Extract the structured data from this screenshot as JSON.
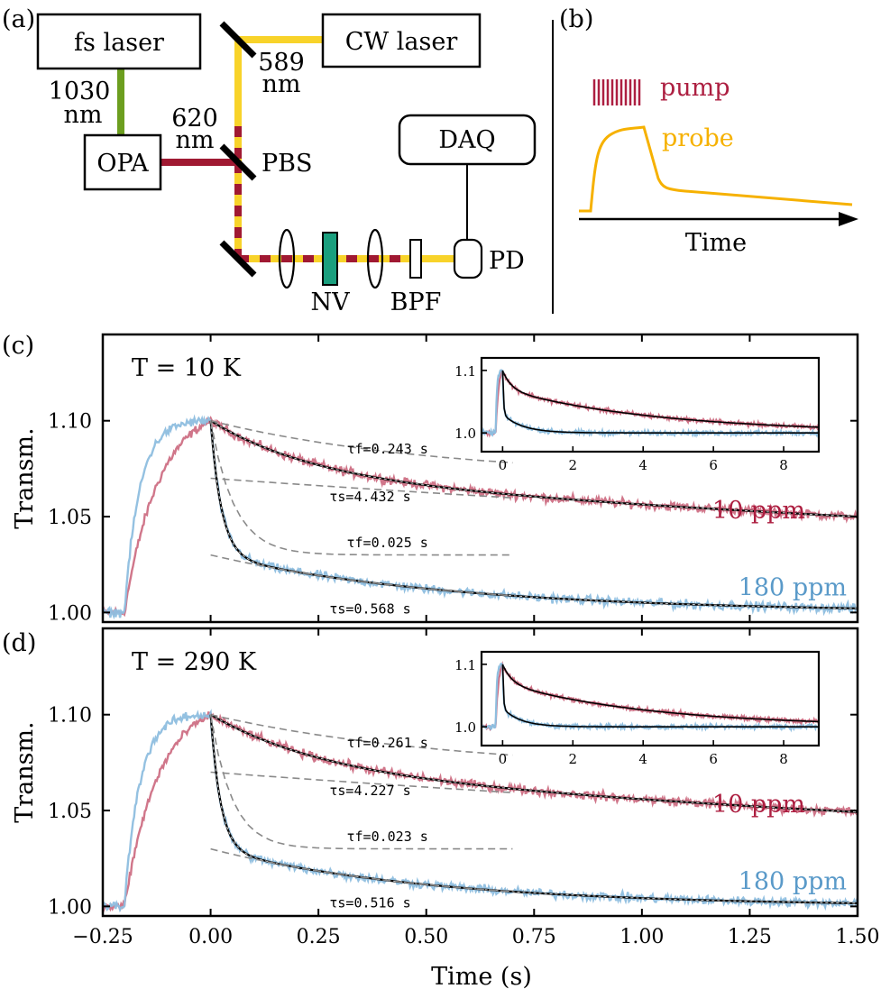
{
  "panel_labels": {
    "a": "(a)",
    "b": "(b)",
    "c": "(c)",
    "d": "(d)"
  },
  "colors": {
    "green_beam": "#6c9e1f",
    "red_beam": "#a01932",
    "yellow_beam": "#f8d32a",
    "nv": "#1a9f7e",
    "pump": "#ad1f41",
    "probe": "#f6b100",
    "red_data": "#cd6f84",
    "blue_data": "#8ebedf",
    "red_label": "#ad1f41",
    "blue_label": "#5a9ac9",
    "fit": "#000000",
    "dash": "#8a8a8a"
  },
  "setup": {
    "fs_laser": "fs laser",
    "cw_laser": "CW laser",
    "opa": "OPA",
    "daq": "DAQ",
    "pbs": "PBS",
    "pd": "PD",
    "nv": "NV",
    "bpf": "BPF",
    "wl_1030": "1030",
    "wl_620": "620",
    "wl_589": "589",
    "nm": "nm"
  },
  "schematic": {
    "pump_label": "pump",
    "probe_label": "probe",
    "time_label": "Time"
  },
  "chart_data": [
    {
      "id": "c",
      "type": "line",
      "temperature_label": "T = 10 K",
      "ylabel": "Transm.",
      "xlim": [
        -0.25,
        1.5
      ],
      "ylim": [
        0.995,
        1.145
      ],
      "yticks": [
        1.0,
        1.05,
        1.1
      ],
      "ytick_labels": [
        "1.00",
        "1.05",
        "1.10"
      ],
      "series": [
        {
          "name": "10 ppm",
          "tau_f": 0.243,
          "tau_s": 4.432
        },
        {
          "name": "180 ppm",
          "tau_f": 0.025,
          "tau_s": 0.568
        }
      ],
      "annotations": [
        "τf=0.243 s",
        "τs=4.432 s",
        "τf=0.025 s",
        "τs=0.568 s"
      ],
      "inset": {
        "xlim": [
          -0.6,
          9
        ],
        "ylim": [
          0.97,
          1.12
        ],
        "xticks": [
          0,
          2,
          4,
          6,
          8
        ],
        "xtick_labels": [
          "0",
          "2",
          "4",
          "6",
          "8"
        ],
        "yticks": [
          1.0,
          1.1
        ],
        "ytick_labels": [
          "1.0",
          "1.1"
        ]
      }
    },
    {
      "id": "d",
      "type": "line",
      "temperature_label": "T = 290 K",
      "ylabel": "Transm.",
      "xlabel": "Time (s)",
      "xlim": [
        -0.25,
        1.5
      ],
      "ylim": [
        0.995,
        1.145
      ],
      "xticks": [
        -0.25,
        0.0,
        0.25,
        0.5,
        0.75,
        1.0,
        1.25,
        1.5
      ],
      "xtick_labels": [
        "−0.25",
        "0.00",
        "0.25",
        "0.50",
        "0.75",
        "1.00",
        "1.25",
        "1.50"
      ],
      "yticks": [
        1.0,
        1.05,
        1.1
      ],
      "ytick_labels": [
        "1.00",
        "1.05",
        "1.10"
      ],
      "series": [
        {
          "name": "10 ppm",
          "tau_f": 0.261,
          "tau_s": 4.227
        },
        {
          "name": "180 ppm",
          "tau_f": 0.023,
          "tau_s": 0.516
        }
      ],
      "annotations": [
        "τf=0.261 s",
        "τs=4.227 s",
        "τf=0.023 s",
        "τs=0.516 s"
      ],
      "inset": {
        "xlim": [
          -0.6,
          9
        ],
        "ylim": [
          0.97,
          1.12
        ],
        "xticks": [
          0,
          2,
          4,
          6,
          8
        ],
        "xtick_labels": [
          "0",
          "2",
          "4",
          "6",
          "8"
        ],
        "yticks": [
          1.0,
          1.1
        ],
        "ytick_labels": [
          "1.0",
          "1.1"
        ]
      }
    }
  ]
}
